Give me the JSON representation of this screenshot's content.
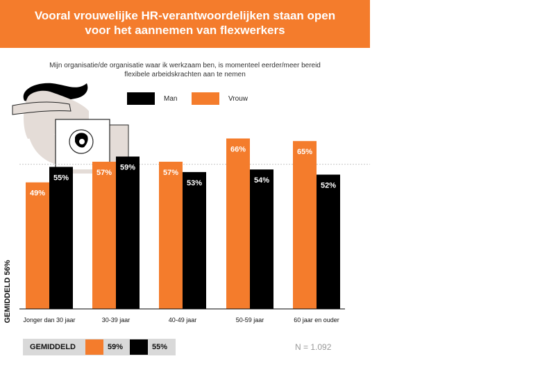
{
  "colors": {
    "vrouw": "#f47c2c",
    "man": "#000000",
    "header_bg": "#f47c2c",
    "avg_bg": "#d9d9d9"
  },
  "header": {
    "title_line1": "Vooral vrouwelijke HR-verantwoordelijken staan open",
    "title_line2": "voor het aannemen van flexwerkers"
  },
  "subtitle": {
    "line1": "Mijn organisatie/de organisatie waar ik werkzaam ben, is momenteel eerder/meer bereid",
    "line2": "flexibele arbeidskrachten aan te nemen"
  },
  "legend": {
    "man": "Man",
    "vrouw": "Vrouw"
  },
  "illustration": {
    "icon": "woman-with-laptop-illustration"
  },
  "chart_data": {
    "type": "bar",
    "categories": [
      "Jonger dan 30 jaar",
      "30-39 jaar",
      "40-49 jaar",
      "50-59 jaar",
      "60 jaar en ouder"
    ],
    "series": [
      {
        "name": "Vrouw",
        "values": [
          49,
          57,
          57,
          66,
          65
        ],
        "labels": [
          "49%",
          "57%",
          "57%",
          "66%",
          "65%"
        ]
      },
      {
        "name": "Man",
        "values": [
          55,
          59,
          53,
          54,
          52
        ],
        "labels": [
          "55%",
          "59%",
          "53%",
          "54%",
          "52%"
        ]
      }
    ],
    "ylabel": "GEMIDDELD 56%",
    "average_line": 56,
    "ylim": [
      0,
      70
    ],
    "grid": false,
    "legend_position": "top-right"
  },
  "average": {
    "label": "GEMIDDELD",
    "vrouw": "59%",
    "man": "55%"
  },
  "sample": {
    "text": "N = 1.092"
  }
}
